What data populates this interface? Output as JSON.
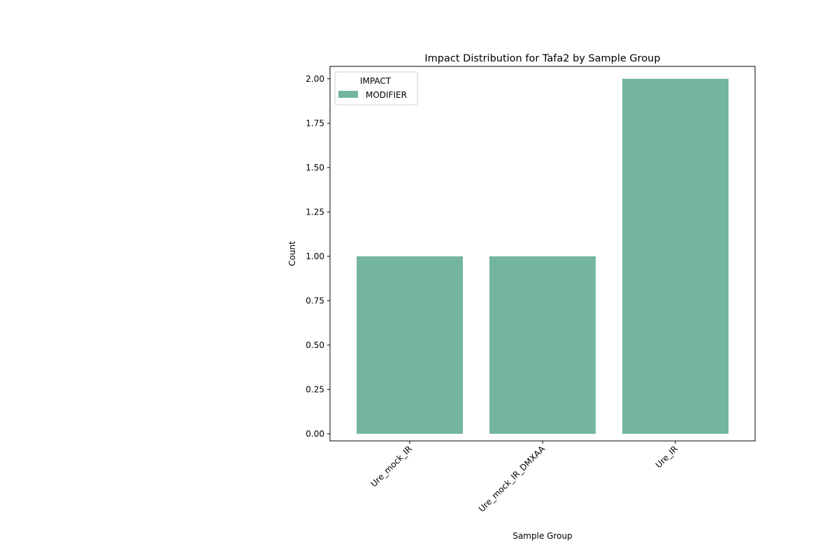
{
  "chart_data": {
    "type": "bar",
    "title": "Impact Distribution for Tafa2 by Sample Group",
    "xlabel": "Sample Group",
    "ylabel": "Count",
    "categories": [
      "Ure_mock_IR",
      "Ure_mock_IR_DMXAA",
      "Ure_IR"
    ],
    "series": [
      {
        "name": "MODIFIER",
        "values": [
          1,
          1,
          2
        ],
        "color": "#73b5a0"
      }
    ],
    "ylim": [
      -0.04,
      2.07
    ],
    "yticks": [
      0.0,
      0.25,
      0.5,
      0.75,
      1.0,
      1.25,
      1.5,
      1.75,
      2.0
    ],
    "ytick_labels": [
      "0.00",
      "0.25",
      "0.50",
      "0.75",
      "1.00",
      "1.25",
      "1.50",
      "1.75",
      "2.00"
    ],
    "legend": {
      "title": "IMPACT",
      "placement": "top-left"
    },
    "grid": false
  }
}
